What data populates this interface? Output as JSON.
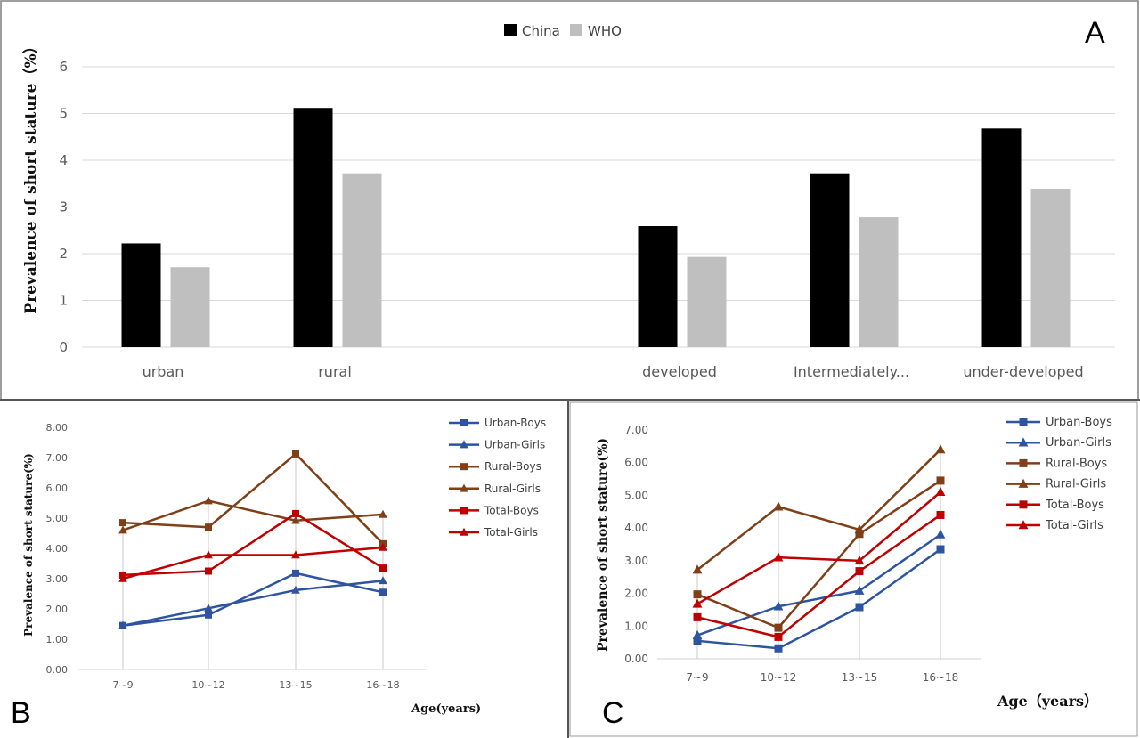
{
  "colors": {
    "china": "#000000",
    "who": "#bfbfbf",
    "grid": "#d9d9d9",
    "urban": "#2e54a0",
    "rural": "#7f3f17",
    "total": "#c00000"
  },
  "chart_data": [
    {
      "panel": "A",
      "type": "bar",
      "ylabel": "Prevalence of short stature（%）",
      "ylim": [
        0,
        6
      ],
      "yticks": [
        "0",
        "1",
        "2",
        "3",
        "4",
        "5",
        "6"
      ],
      "categories": [
        "urban",
        "rural",
        "",
        "developed",
        "Intermediately...",
        "under-developed"
      ],
      "series": [
        {
          "name": "China",
          "color": "#000000",
          "values": [
            2.22,
            5.12,
            null,
            2.59,
            3.72,
            4.68
          ]
        },
        {
          "name": "WHO",
          "color": "#bfbfbf",
          "values": [
            1.71,
            3.72,
            null,
            1.93,
            2.78,
            3.39
          ]
        }
      ],
      "legend_position": "top-center",
      "grid": true
    },
    {
      "panel": "B",
      "type": "line",
      "xlabel": "Age(years)",
      "ylabel": "Prevalence of short  stature(%)",
      "ylim": [
        0,
        8
      ],
      "yticks": [
        "0.00",
        "1.00",
        "2.00",
        "3.00",
        "4.00",
        "5.00",
        "6.00",
        "7.00",
        "8.00"
      ],
      "categories": [
        "7~9",
        "10~12",
        "13~15",
        "16~18"
      ],
      "series": [
        {
          "name": "Urban-Boys",
          "color": "#2e54a0",
          "marker": "square",
          "values": [
            1.45,
            1.8,
            3.18,
            2.55
          ]
        },
        {
          "name": "Urban-Girls",
          "color": "#2e54a0",
          "marker": "triangle",
          "values": [
            1.45,
            2.02,
            2.62,
            2.93
          ]
        },
        {
          "name": "Rural-Boys",
          "color": "#7f3f17",
          "marker": "square",
          "values": [
            4.85,
            4.7,
            7.12,
            4.15
          ]
        },
        {
          "name": "Rural-Girls",
          "color": "#7f3f17",
          "marker": "triangle",
          "values": [
            4.6,
            5.57,
            4.92,
            5.12
          ]
        },
        {
          "name": "Total-Boys",
          "color": "#c00000",
          "marker": "square",
          "values": [
            3.12,
            3.25,
            5.15,
            3.35
          ]
        },
        {
          "name": "Total-Girls",
          "color": "#c00000",
          "marker": "triangle",
          "values": [
            3.0,
            3.78,
            3.78,
            4.03
          ]
        }
      ],
      "legend_position": "right",
      "grid": false
    },
    {
      "panel": "C",
      "type": "line",
      "xlabel": "Age（years）",
      "ylabel": "Prevalence of short  stature(%)",
      "ylim": [
        0,
        7
      ],
      "yticks": [
        "0.00",
        "1.00",
        "2.00",
        "3.00",
        "4.00",
        "5.00",
        "6.00",
        "7.00"
      ],
      "categories": [
        "7~9",
        "10~12",
        "13~15",
        "16~18"
      ],
      "series": [
        {
          "name": "Urban-Boys",
          "color": "#2e54a0",
          "marker": "square",
          "values": [
            0.55,
            0.32,
            1.58,
            3.35
          ]
        },
        {
          "name": "Urban-Girls",
          "color": "#2e54a0",
          "marker": "triangle",
          "values": [
            0.72,
            1.6,
            2.08,
            3.8
          ]
        },
        {
          "name": "Rural-Boys",
          "color": "#7f3f17",
          "marker": "square",
          "values": [
            1.97,
            0.95,
            3.82,
            5.45
          ]
        },
        {
          "name": "Rural-Girls",
          "color": "#7f3f17",
          "marker": "triangle",
          "values": [
            2.72,
            4.65,
            3.95,
            6.4
          ]
        },
        {
          "name": "Total-Boys",
          "color": "#c00000",
          "marker": "square",
          "values": [
            1.27,
            0.67,
            2.68,
            4.4
          ]
        },
        {
          "name": "Total-Girls",
          "color": "#c00000",
          "marker": "triangle",
          "values": [
            1.68,
            3.1,
            3.0,
            5.1
          ]
        }
      ],
      "legend_position": "right",
      "grid": false
    }
  ],
  "panels": {
    "a": "A",
    "b": "B",
    "c": "C"
  }
}
